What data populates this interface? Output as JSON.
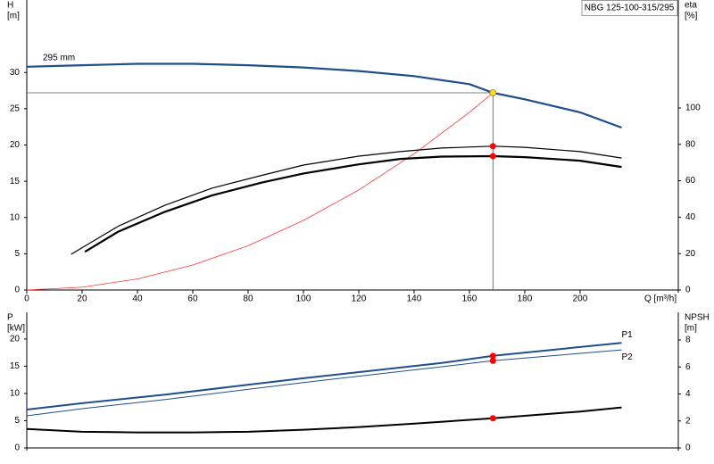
{
  "chart_data": [
    {
      "type": "line",
      "title": "NBG 125-100-315/295",
      "x_label": "Q [m³/h]",
      "y_label": "H",
      "y_unit": "[m]",
      "y2_label": "eta",
      "y2_unit": "[%]",
      "xlim": [
        0,
        235.5
      ],
      "xticks": [
        0,
        20,
        40,
        60,
        80,
        100,
        120,
        140,
        160,
        180,
        200
      ],
      "ylim": [
        0,
        40
      ],
      "yticks": [
        0,
        5,
        10,
        15,
        20,
        25,
        30
      ],
      "y2lim": [
        0,
        159.3
      ],
      "y2ticks": [
        0,
        20,
        40,
        60,
        80,
        100
      ],
      "series": [
        {
          "name": "295 mm",
          "color": "#1f4e8c",
          "width": 2.2,
          "x": [
            0,
            20,
            40,
            60,
            80,
            100,
            120,
            140,
            160,
            168.5,
            180,
            200,
            215
          ],
          "values": [
            30.8,
            31.0,
            31.2,
            31.2,
            31.0,
            30.7,
            30.2,
            29.5,
            28.4,
            27.2,
            26.3,
            24.5,
            22.4
          ]
        },
        {
          "color": "#ff3333",
          "width": 0.8,
          "x": [
            0,
            20,
            40,
            60,
            80,
            100,
            120,
            140,
            160,
            168.5
          ],
          "values": [
            0,
            0.38,
            1.53,
            3.45,
            6.1,
            9.6,
            13.8,
            18.8,
            24.5,
            27.2
          ]
        },
        {
          "color": "#000000",
          "width": 1.2,
          "axis": "y2",
          "x": [
            16,
            33,
            50,
            67,
            85,
            100,
            120,
            135,
            150,
            168.5,
            180,
            200,
            215
          ],
          "values": [
            19.6,
            35,
            46.6,
            56,
            63,
            68.6,
            73.5,
            76,
            78,
            79,
            78.4,
            76,
            72.5
          ]
        },
        {
          "color": "#000000",
          "width": 2.2,
          "axis": "y2",
          "x": [
            21,
            33,
            50,
            67,
            85,
            100,
            120,
            135,
            150,
            168.5,
            180,
            200,
            215
          ],
          "values": [
            21,
            32,
            43,
            52,
            59,
            64,
            69,
            72,
            73.3,
            73.5,
            73,
            71,
            67.6
          ]
        }
      ],
      "operating_points": [
        {
          "x": 168.5,
          "y": 27.2,
          "color": "#ffdd22",
          "crosshair": true
        },
        {
          "x": 168.5,
          "y": 79,
          "axis": "y2",
          "color": "#ff0000"
        },
        {
          "x": 168.5,
          "y": 73.5,
          "axis": "y2",
          "color": "#ff0000"
        }
      ]
    },
    {
      "type": "line",
      "y_label": "P",
      "y_unit": "[kW]",
      "y2_label": "NPSH",
      "y2_unit": "[m]",
      "xlim": [
        0,
        235.5
      ],
      "ylim": [
        0,
        24.9
      ],
      "yticks": [
        0,
        5,
        10,
        15,
        20
      ],
      "y2lim": [
        0,
        10.05
      ],
      "y2ticks": [
        0,
        2,
        4,
        6,
        8
      ],
      "series": [
        {
          "name": "P1",
          "color": "#1f4e8c",
          "width": 2,
          "x": [
            0,
            20,
            50,
            100,
            150,
            168.5,
            215
          ],
          "values": [
            7.05,
            8.2,
            9.8,
            12.8,
            15.6,
            16.9,
            19.3
          ]
        },
        {
          "name": "P2",
          "color": "#1f4e8c",
          "width": 1,
          "x": [
            0,
            20,
            50,
            100,
            150,
            168.5,
            215
          ],
          "values": [
            5.9,
            7.2,
            8.9,
            12.0,
            14.9,
            16.0,
            18.0
          ]
        },
        {
          "color": "#000000",
          "width": 2,
          "axis": "y2",
          "x": [
            0,
            20,
            40,
            60,
            80,
            100,
            120,
            140,
            168.5,
            200,
            215
          ],
          "values": [
            1.4,
            1.2,
            1.15,
            1.15,
            1.2,
            1.35,
            1.55,
            1.8,
            2.2,
            2.7,
            3.0
          ]
        }
      ],
      "operating_points": [
        {
          "x": 168.5,
          "y": 16.9,
          "color": "#ff0000"
        },
        {
          "x": 168.5,
          "y": 16.0,
          "color": "#ff0000"
        },
        {
          "x": 168.5,
          "y": 2.2,
          "axis": "y2",
          "color": "#ff0000"
        }
      ]
    }
  ]
}
